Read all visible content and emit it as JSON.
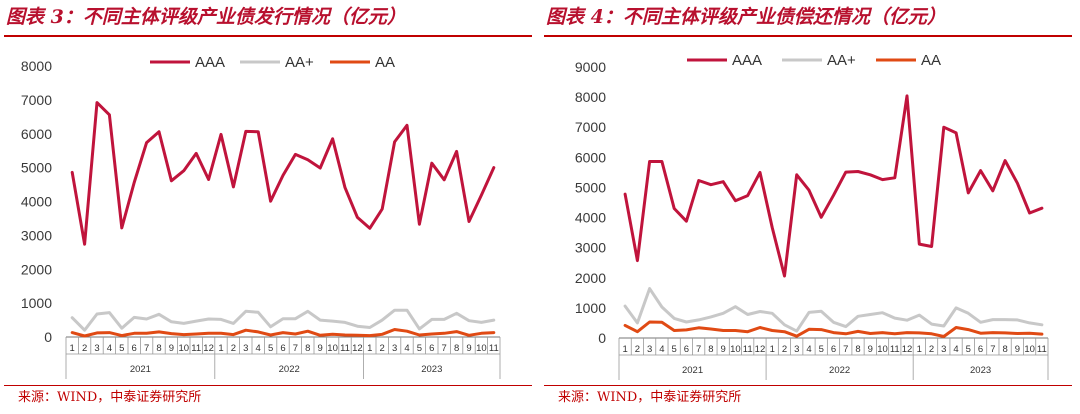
{
  "source": "来源：WIND，中泰证券研究所",
  "chart_data": [
    {
      "type": "line",
      "title": "图表 3：不同主体评级产业债发行情况（亿元）",
      "ylim": [
        0,
        8000
      ],
      "yticks": [
        0,
        1000,
        2000,
        3000,
        4000,
        5000,
        6000,
        7000,
        8000
      ],
      "months": [
        "1",
        "2",
        "3",
        "4",
        "5",
        "6",
        "7",
        "8",
        "9",
        "10",
        "11",
        "12",
        "1",
        "2",
        "3",
        "4",
        "5",
        "6",
        "7",
        "8",
        "9",
        "10",
        "11",
        "12",
        "1",
        "2",
        "3",
        "4",
        "5",
        "6",
        "7",
        "8",
        "9",
        "10",
        "11"
      ],
      "years": [
        "2021",
        "2022",
        "2023"
      ],
      "legend": "top",
      "series": [
        {
          "name": "AAA",
          "color": "#c0143c",
          "values": [
            4860,
            2740,
            6920,
            6560,
            3220,
            4560,
            5740,
            6060,
            4610,
            4910,
            5420,
            4650,
            5980,
            4430,
            6070,
            6060,
            4010,
            4770,
            5390,
            5230,
            4990,
            5850,
            4410,
            3530,
            3210,
            3780,
            5760,
            6250,
            3330,
            5130,
            4640,
            5480,
            3410,
            4190,
            5000
          ]
        },
        {
          "name": "AA+",
          "color": "#c8c8c8",
          "values": [
            570,
            200,
            680,
            720,
            260,
            580,
            530,
            670,
            450,
            400,
            470,
            530,
            520,
            400,
            760,
            730,
            300,
            540,
            540,
            760,
            500,
            470,
            430,
            320,
            280,
            500,
            790,
            790,
            240,
            520,
            520,
            700,
            480,
            430,
            500
          ]
        },
        {
          "name": "AA",
          "color": "#e04a14",
          "values": [
            130,
            30,
            120,
            130,
            40,
            110,
            110,
            150,
            100,
            70,
            90,
            110,
            110,
            70,
            200,
            150,
            60,
            130,
            90,
            170,
            50,
            80,
            60,
            50,
            40,
            80,
            220,
            170,
            60,
            90,
            110,
            160,
            50,
            110,
            130
          ]
        }
      ]
    },
    {
      "type": "line",
      "title": "图表 4：不同主体评级产业债偿还情况（亿元）",
      "ylim": [
        0,
        9000
      ],
      "yticks": [
        0,
        1000,
        2000,
        3000,
        4000,
        5000,
        6000,
        7000,
        8000,
        9000
      ],
      "months": [
        "1",
        "2",
        "3",
        "4",
        "5",
        "6",
        "7",
        "8",
        "9",
        "10",
        "11",
        "12",
        "1",
        "2",
        "3",
        "4",
        "5",
        "6",
        "7",
        "8",
        "9",
        "10",
        "11",
        "12",
        "1",
        "2",
        "3",
        "4",
        "5",
        "6",
        "7",
        "8",
        "9",
        "10",
        "11"
      ],
      "years": [
        "2021",
        "2022",
        "2023"
      ],
      "legend": "top",
      "series": [
        {
          "name": "AAA",
          "color": "#c0143c",
          "values": [
            4780,
            2570,
            5860,
            5860,
            4300,
            3880,
            5230,
            5090,
            5190,
            4560,
            4730,
            5500,
            3670,
            2060,
            5420,
            4910,
            4010,
            4740,
            5510,
            5530,
            5420,
            5260,
            5320,
            8040,
            3120,
            3040,
            7000,
            6810,
            4820,
            5560,
            4890,
            5890,
            5140,
            4150,
            4310
          ]
        },
        {
          "name": "AA+",
          "color": "#c8c8c8",
          "values": [
            1060,
            500,
            1640,
            1030,
            650,
            530,
            600,
            700,
            820,
            1040,
            780,
            880,
            820,
            440,
            230,
            850,
            890,
            520,
            380,
            720,
            780,
            840,
            660,
            590,
            760,
            460,
            400,
            1000,
            820,
            520,
            610,
            610,
            600,
            500,
            440
          ]
        },
        {
          "name": "AA",
          "color": "#e04a14",
          "values": [
            420,
            210,
            530,
            520,
            250,
            270,
            340,
            300,
            250,
            250,
            210,
            350,
            250,
            210,
            60,
            290,
            280,
            180,
            140,
            220,
            150,
            180,
            140,
            180,
            170,
            140,
            50,
            350,
            280,
            160,
            180,
            170,
            150,
            160,
            130
          ]
        }
      ]
    }
  ]
}
